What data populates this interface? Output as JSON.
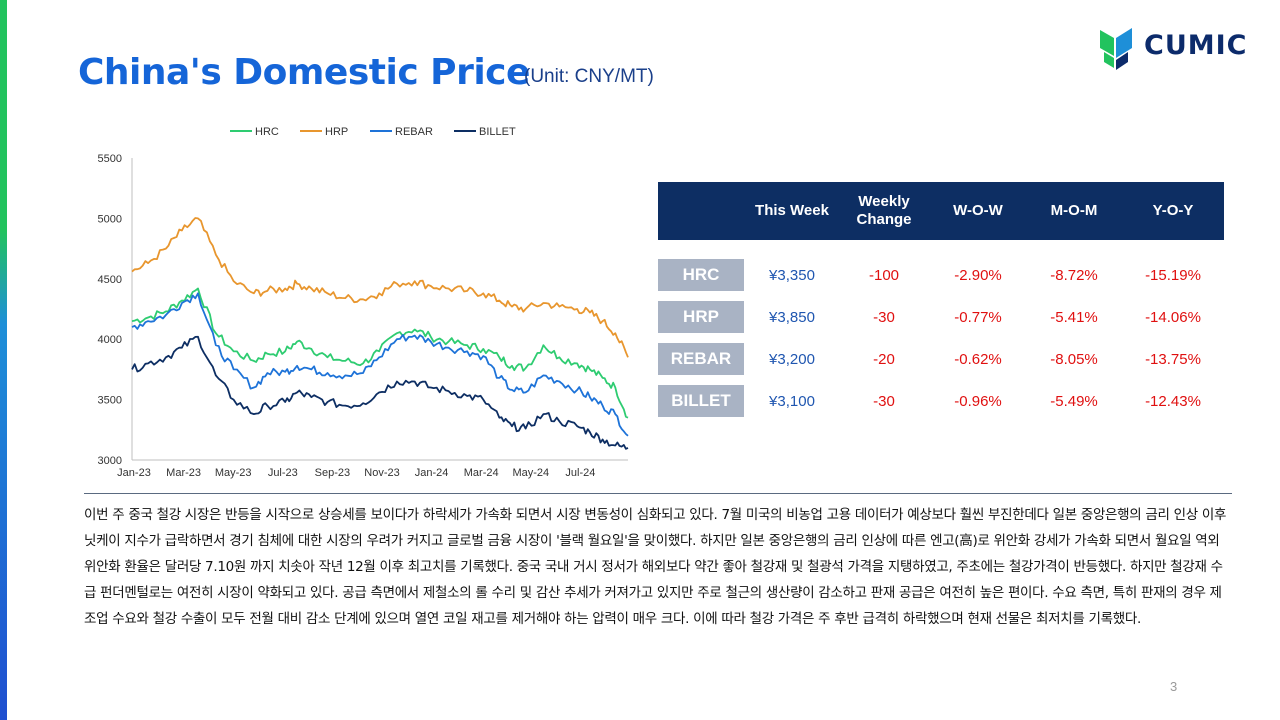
{
  "title": "China's Domestic Price",
  "unit": "(Unit: CNY/MT)",
  "logo": {
    "text": "CUMIC",
    "colors": [
      "#22c35e",
      "#1e8fd8",
      "#0c2b6b"
    ]
  },
  "table": {
    "headers": [
      "This Week",
      "Weekly Change",
      "W-O-W",
      "M-O-M",
      "Y-O-Y"
    ],
    "rows": [
      {
        "label": "HRC",
        "cells": [
          "¥3,350",
          "-100",
          "-2.90%",
          "-8.72%",
          "-15.19%"
        ]
      },
      {
        "label": "HRP",
        "cells": [
          "¥3,850",
          "-30",
          "-0.77%",
          "-5.41%",
          "-14.06%"
        ]
      },
      {
        "label": "REBAR",
        "cells": [
          "¥3,200",
          "-20",
          "-0.62%",
          "-8.05%",
          "-13.75%"
        ]
      },
      {
        "label": "BILLET",
        "cells": [
          "¥3,100",
          "-30",
          "-0.96%",
          "-5.49%",
          "-12.43%"
        ]
      }
    ]
  },
  "paragraph": "이번 주 중국 철강 시장은 반등을 시작으로 상승세를 보이다가 하락세가 가속화 되면서 시장 변동성이 심화되고 있다. 7월 미국의 비농업 고용 데이터가 예상보다 훨씬 부진한데다 일본 중앙은행의 금리 인상 이후 닛케이 지수가 급락하면서 경기 침체에 대한 시장의 우려가 커지고 글로벌 금융 시장이 '블랙 월요일'을 맞이했다. 하지만 일본 중앙은행의 금리 인상에 따른 엔고(高)로 위안화 강세가 가속화 되면서 월요일 역외 위안화 환율은 달러당 7.10원 까지 치솟아 작년 12월 이후 최고치를 기록했다. 중국 국내 거시 정서가 해외보다 약간 좋아 철강재 및 철광석 가격을 지탱하였고, 주초에는 철강가격이 반등했다. 하지만 철강재 수급 펀더멘털로는 여전히 시장이 약화되고 있다. 공급 측면에서 제철소의 롤 수리 및 감산 추세가 커져가고 있지만 주로 철근의 생산량이 감소하고 판재 공급은 여전히 높은 편이다. 수요 측면, 특히 판재의 경우 제조업 수요와 철강 수출이 모두 전월 대비 감소 단계에 있으며 열연 코일 재고를 제거해야 하는 압력이 매우 크다. 이에 따라 철강 가격은 주 후반 급격히 하락했으며 현재 선물은 최저치를 기록했다.",
  "page_number": "3",
  "chart_data": {
    "type": "line",
    "title": "",
    "xlabel": "",
    "ylabel": "",
    "ylim": [
      3000,
      5500
    ],
    "yticks": [
      3000,
      3500,
      4000,
      4500,
      5000,
      5500
    ],
    "x_tick_labels": [
      "Jan-23",
      "Mar-23",
      "May-23",
      "Jul-23",
      "Sep-23",
      "Nov-23",
      "Jan-24",
      "Mar-24",
      "May-24",
      "Jul-24"
    ],
    "x_range": [
      "2023-01-01",
      "2024-08-09"
    ],
    "legend_position": "top",
    "grid": false,
    "series": [
      {
        "name": "HRC",
        "color": "#2ecc71",
        "x": [
          "2023-01-01",
          "2023-01-20",
          "2023-02-10",
          "2023-03-01",
          "2023-03-20",
          "2023-04-10",
          "2023-05-01",
          "2023-05-25",
          "2023-06-10",
          "2023-07-01",
          "2023-07-15",
          "2023-08-01",
          "2023-08-20",
          "2023-09-10",
          "2023-10-01",
          "2023-10-20",
          "2023-11-10",
          "2023-12-01",
          "2023-12-20",
          "2024-01-10",
          "2024-02-01",
          "2024-02-20",
          "2024-03-10",
          "2024-03-25",
          "2024-04-10",
          "2024-05-01",
          "2024-05-20",
          "2024-06-10",
          "2024-06-25",
          "2024-07-10",
          "2024-07-25",
          "2024-08-09"
        ],
        "values": [
          4150,
          4180,
          4230,
          4320,
          4420,
          4050,
          3900,
          3820,
          3880,
          3900,
          3980,
          3920,
          3850,
          3820,
          3800,
          3900,
          4050,
          4080,
          4020,
          3980,
          3950,
          3920,
          3850,
          3780,
          3760,
          3950,
          3850,
          3800,
          3750,
          3680,
          3600,
          3350
        ]
      },
      {
        "name": "HRP",
        "color": "#e8962e",
        "x": [
          "2023-01-01",
          "2023-01-20",
          "2023-02-10",
          "2023-03-01",
          "2023-03-20",
          "2023-04-10",
          "2023-05-01",
          "2023-05-25",
          "2023-06-10",
          "2023-07-01",
          "2023-07-15",
          "2023-08-01",
          "2023-08-20",
          "2023-09-10",
          "2023-10-01",
          "2023-10-20",
          "2023-11-10",
          "2023-12-01",
          "2023-12-20",
          "2024-01-10",
          "2024-02-01",
          "2024-02-20",
          "2024-03-10",
          "2024-03-25",
          "2024-04-10",
          "2024-05-01",
          "2024-05-20",
          "2024-06-10",
          "2024-06-25",
          "2024-07-10",
          "2024-07-25",
          "2024-08-09"
        ],
        "values": [
          4560,
          4630,
          4750,
          4900,
          5000,
          4700,
          4480,
          4380,
          4400,
          4420,
          4460,
          4420,
          4380,
          4340,
          4330,
          4380,
          4460,
          4480,
          4440,
          4420,
          4400,
          4380,
          4320,
          4270,
          4250,
          4300,
          4270,
          4250,
          4220,
          4150,
          4050,
          3850
        ]
      },
      {
        "name": "REBAR",
        "color": "#1e73d8",
        "x": [
          "2023-01-01",
          "2023-01-20",
          "2023-02-10",
          "2023-03-01",
          "2023-03-20",
          "2023-04-10",
          "2023-05-01",
          "2023-05-25",
          "2023-06-10",
          "2023-07-01",
          "2023-07-15",
          "2023-08-01",
          "2023-08-20",
          "2023-09-10",
          "2023-10-01",
          "2023-10-20",
          "2023-11-10",
          "2023-12-01",
          "2023-12-20",
          "2024-01-10",
          "2024-02-01",
          "2024-02-20",
          "2024-03-10",
          "2024-03-25",
          "2024-04-10",
          "2024-05-01",
          "2024-05-20",
          "2024-06-10",
          "2024-06-25",
          "2024-07-10",
          "2024-07-25",
          "2024-08-09"
        ],
        "values": [
          4100,
          4150,
          4200,
          4300,
          4380,
          3950,
          3750,
          3600,
          3720,
          3730,
          3780,
          3750,
          3720,
          3700,
          3720,
          3850,
          4000,
          4030,
          3980,
          3930,
          3900,
          3860,
          3680,
          3580,
          3560,
          3700,
          3650,
          3580,
          3520,
          3450,
          3380,
          3200
        ]
      },
      {
        "name": "BILLET",
        "color": "#0d2e63",
        "x": [
          "2023-01-01",
          "2023-01-20",
          "2023-02-10",
          "2023-03-01",
          "2023-03-20",
          "2023-04-10",
          "2023-05-01",
          "2023-05-25",
          "2023-06-10",
          "2023-07-01",
          "2023-07-15",
          "2023-08-01",
          "2023-08-20",
          "2023-09-10",
          "2023-10-01",
          "2023-10-20",
          "2023-11-10",
          "2023-12-01",
          "2023-12-20",
          "2024-01-10",
          "2024-02-01",
          "2024-02-20",
          "2024-03-10",
          "2024-03-25",
          "2024-04-10",
          "2024-05-01",
          "2024-05-20",
          "2024-06-10",
          "2024-06-25",
          "2024-07-10",
          "2024-07-25",
          "2024-08-09"
        ],
        "values": [
          3750,
          3800,
          3850,
          3930,
          4020,
          3700,
          3500,
          3380,
          3450,
          3480,
          3560,
          3520,
          3480,
          3450,
          3470,
          3560,
          3650,
          3650,
          3600,
          3570,
          3530,
          3500,
          3350,
          3280,
          3260,
          3380,
          3320,
          3280,
          3230,
          3170,
          3120,
          3100
        ]
      }
    ]
  }
}
